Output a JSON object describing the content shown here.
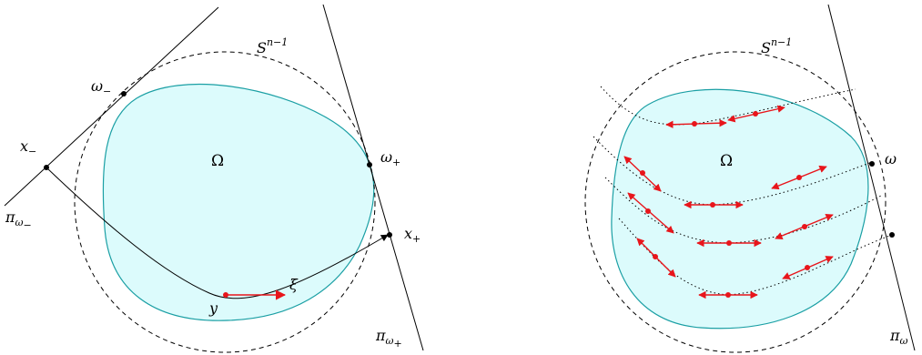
{
  "left_panel": {
    "sphere_label": {
      "base": "S",
      "sup": "n−1"
    },
    "domain_label": "Ω",
    "omega_minus": {
      "base": "ω",
      "sub": "−"
    },
    "omega_plus": {
      "base": "ω",
      "sub": "+"
    },
    "x_minus": {
      "base": "x",
      "sub": "−"
    },
    "x_plus": {
      "base": "x",
      "sub": "+"
    },
    "plane_minus": {
      "base": "π",
      "sub": "ω",
      "subsub": "−"
    },
    "plane_plus": {
      "base": "π",
      "sub": "ω",
      "subsub": "+"
    },
    "point_y": "y",
    "vector_xi": "ξ"
  },
  "right_panel": {
    "sphere_label": {
      "base": "S",
      "sup": "n−1"
    },
    "domain_label": "Ω",
    "omega": "ω",
    "plane": {
      "base": "π",
      "sub": "ω"
    }
  },
  "colors": {
    "domain_fill": "#dcfbfc",
    "domain_stroke": "#1a9fa4",
    "accent_red": "#e8151b"
  }
}
